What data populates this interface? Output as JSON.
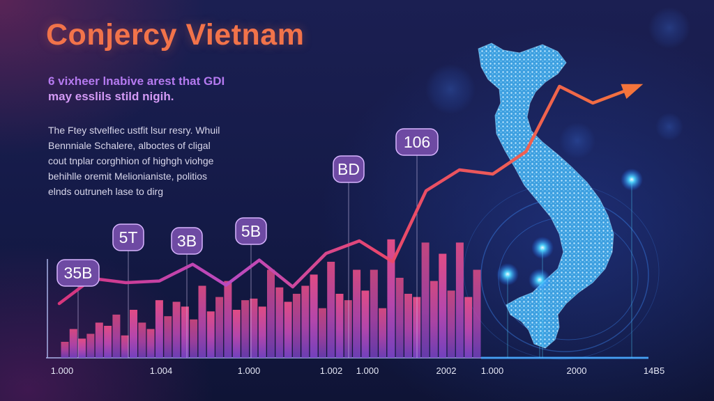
{
  "title": "Conjercy Vietnam",
  "subtitle_lines": [
    "6 vixheer lnabive arest that GDI",
    "may esslils stild nigih."
  ],
  "description_lines": [
    "The Ftey stvelfiec ustfit lsur resry. Whuil",
    "Bennniale Schalere, alboctes of cligal",
    "cout tnplar corghhion of highgh viohge",
    "behihlle oremit Melionianiste, politios",
    "elnds outruneh lase to dirg"
  ],
  "colors": {
    "title": "#f2734a",
    "subtitle": "#b57af0",
    "line_start": "#d8357a",
    "line_end": "#f4743b",
    "bar_top": "#f2508a",
    "bar_bottom": "#7a44c8",
    "label_fill": "#6e4aa3",
    "axis": "#a9b3e8",
    "axis_glow": "#3aa5ff",
    "map": "#4fb6ec"
  },
  "chart_data": {
    "type": "bar",
    "x_tick_labels": [
      "1.000",
      "1.004",
      "1.000",
      "1.002",
      "1.000",
      "2002",
      "1.000",
      "2000",
      "14B5"
    ],
    "bar_values": [
      10,
      18,
      12,
      15,
      22,
      20,
      27,
      14,
      30,
      22,
      18,
      36,
      26,
      35,
      32,
      24,
      45,
      29,
      38,
      48,
      30,
      36,
      37,
      32,
      55,
      44,
      35,
      40,
      45,
      52,
      31,
      60,
      40,
      36,
      55,
      42,
      55,
      31,
      74,
      50,
      40,
      38,
      72,
      48,
      65,
      42,
      72,
      38,
      55
    ],
    "trend_line": {
      "values": [
        65,
        95,
        90,
        92,
        112,
        87,
        117,
        85,
        125,
        140,
        115,
        200,
        225,
        220,
        247,
        325,
        305,
        320
      ],
      "arrow": "up-right"
    },
    "value_labels": [
      "35B",
      "5T",
      "3B",
      "5B",
      "BD",
      "106"
    ],
    "grid": false,
    "legend": "none"
  },
  "map": {
    "subject": "vietnam-map",
    "glow_points": 4
  }
}
